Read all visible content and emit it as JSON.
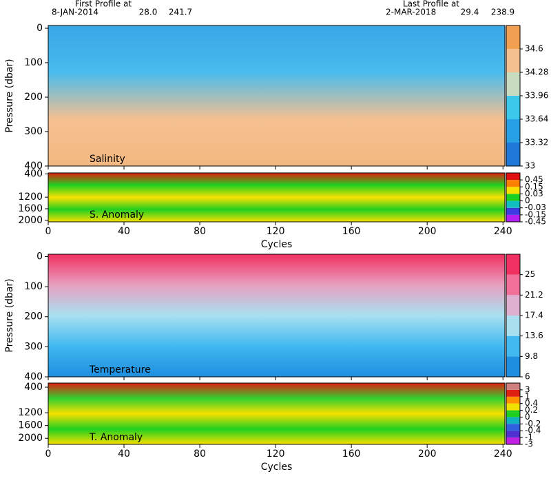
{
  "header": {
    "first_label": "First Profile at",
    "first_date": "8-JAN-2014",
    "first_lat": "28.0",
    "first_lon": "241.7",
    "last_label": "Last Profile at",
    "last_date": "2-MAR-2018",
    "last_lat": "29.4",
    "last_lon": "238.9"
  },
  "chart_data": [
    {
      "type": "heatmap",
      "label": "Salinity",
      "ylabel": "Pressure (dbar)",
      "ylim": [
        -8,
        400
      ],
      "yticks": [
        0,
        100,
        200,
        300,
        400
      ],
      "xlim": [
        0,
        241
      ],
      "xticks": [
        0,
        40,
        80,
        120,
        160,
        200,
        240
      ],
      "colorbar": {
        "ticks": [
          33,
          33.32,
          33.64,
          33.96,
          34.28,
          34.6
        ],
        "colors": [
          "#1e78d8",
          "#28a0e6",
          "#3cc8ea",
          "#c8dcc0",
          "#f5c090",
          "#f0a050"
        ]
      },
      "field_colors": [
        "#3aa6e6",
        "#48bcee",
        "#f5c090",
        "#f3b880"
      ]
    },
    {
      "type": "heatmap",
      "label": "S. Anomaly",
      "xlabel": "Cycles",
      "ylim": [
        365,
        2050
      ],
      "yticks": [
        400,
        1200,
        1600,
        2000
      ],
      "xlim": [
        0,
        241
      ],
      "xticks": [
        0,
        40,
        80,
        120,
        160,
        200,
        240
      ],
      "colorbar": {
        "ticks": [
          -0.45,
          -0.15,
          -0.03,
          0,
          0.03,
          0.15,
          0.45
        ],
        "colors": [
          "#b020f0",
          "#3a3ae0",
          "#10c0c0",
          "#20d020",
          "#f8e000",
          "#ff8000",
          "#e01010"
        ]
      },
      "field_colors": [
        "#e02010",
        "#20d020",
        "#f8e000",
        "#20d020",
        "#f8e000"
      ]
    },
    {
      "type": "heatmap",
      "label": "Temperature",
      "ylabel": "Pressure (dbar)",
      "ylim": [
        -8,
        400
      ],
      "yticks": [
        0,
        100,
        200,
        300,
        400
      ],
      "xlim": [
        0,
        241
      ],
      "xticks": [
        0,
        40,
        80,
        120,
        160,
        200,
        240
      ],
      "colorbar": {
        "ticks": [
          6,
          9.8,
          13.6,
          17.4,
          21.2,
          25
        ],
        "colors": [
          "#1e8ee0",
          "#40b8f0",
          "#a8e0f0",
          "#e0b0d0",
          "#f07098",
          "#f03060"
        ]
      },
      "field_colors": [
        "#f03060",
        "#e8a0c0",
        "#a8e0f0",
        "#40b8f0",
        "#1e8ee0"
      ]
    },
    {
      "type": "heatmap",
      "label": "T. Anomaly",
      "xlabel": "Cycles",
      "ylim": [
        270,
        2190
      ],
      "yticks": [
        400,
        1200,
        1600,
        2000
      ],
      "xlim": [
        0,
        241
      ],
      "xticks": [
        0,
        40,
        80,
        120,
        160,
        200,
        240
      ],
      "colorbar": {
        "ticks": [
          -3,
          -1,
          -0.4,
          -0.2,
          0,
          0.2,
          0.4,
          1,
          3
        ],
        "colors": [
          "#c020e0",
          "#5030d0",
          "#3060e0",
          "#10b0c0",
          "#20d020",
          "#f0e000",
          "#ff9000",
          "#e02010",
          "#d08080"
        ]
      },
      "field_colors": [
        "#e02010",
        "#30d030",
        "#f8e000",
        "#20d020",
        "#f8e000"
      ]
    }
  ]
}
